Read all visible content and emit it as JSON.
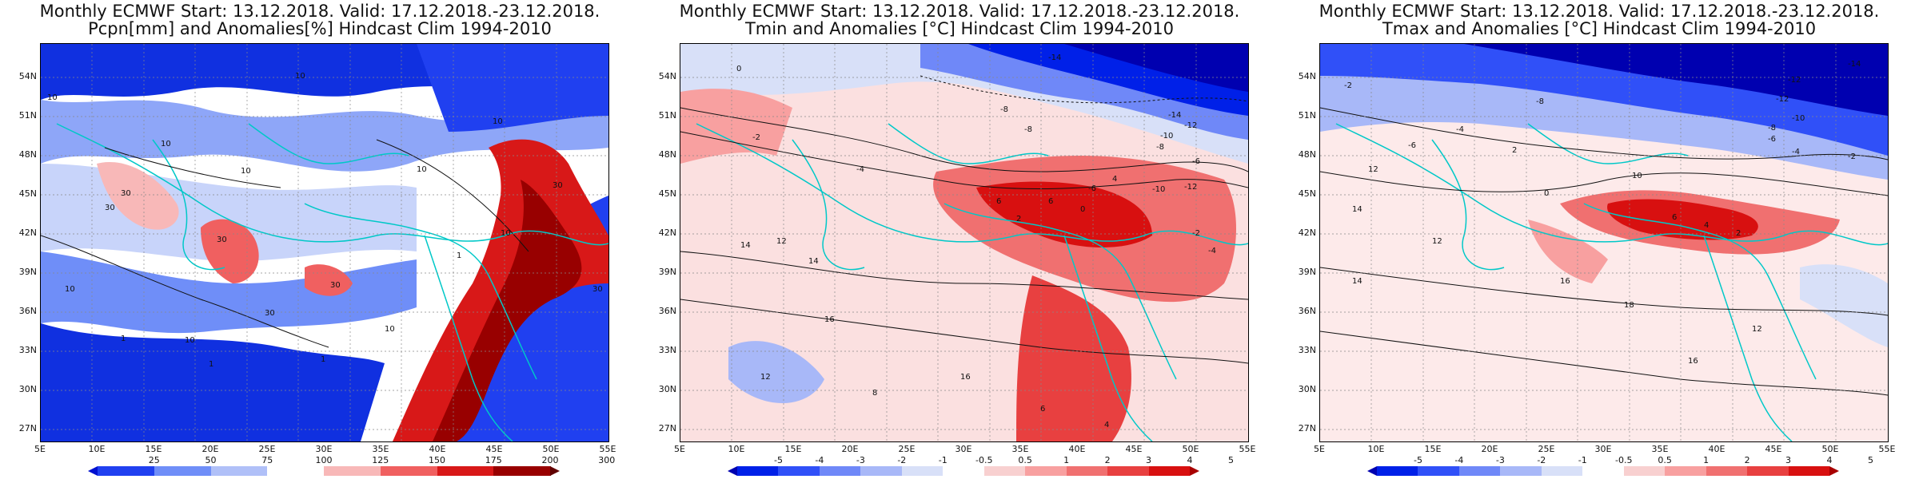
{
  "panels": [
    {
      "title_line1": "Monthly ECMWF Start: 13.12.2018. Valid: 17.12.2018.-23.12.2018.",
      "title_line2": "Pcpn[mm] and Anomalies[%] Hindcast Clim 1994-2010",
      "scale": "precip",
      "colorbar": {
        "labels": [
          "25",
          "50",
          "75",
          "100",
          "125",
          "150",
          "175",
          "200",
          "300"
        ],
        "colors": [
          "#0010d0",
          "#2040f0",
          "#6f8ef8",
          "#b0c0f8",
          "#ffffff",
          "#f8b8b8",
          "#f06060",
          "#d81818",
          "#980000",
          "#600000"
        ]
      },
      "contour_labels": [
        "10",
        "10",
        "30",
        "10",
        "10",
        "30",
        "30",
        "30",
        "10",
        "30",
        "10",
        "10",
        "1",
        "10",
        "1",
        "1",
        "30",
        "1",
        "10",
        "30",
        "10"
      ]
    },
    {
      "title_line1": "Monthly ECMWF Start: 13.12.2018. Valid: 17.12.2018.-23.12.2018.",
      "title_line2": "Tmin and Anomalies [°C] Hindcast Clim 1994-2010",
      "scale": "temp",
      "colorbar": {
        "labels": [
          "-5",
          "-4",
          "-3",
          "-2",
          "-1",
          "-0.5",
          "0.5",
          "1",
          "2",
          "3",
          "4",
          "5"
        ],
        "colors": [
          "#0000b0",
          "#0020e8",
          "#3050f8",
          "#6f88f8",
          "#a8b8f8",
          "#d8e0f8",
          "#ffffff",
          "#f8d0d0",
          "#f8a0a0",
          "#f07070",
          "#e84040",
          "#d81010",
          "#a80000"
        ]
      },
      "contour_labels": [
        "-14",
        "-8",
        "-8",
        "-14",
        "-12",
        "-10",
        "-8",
        "-6",
        "0",
        "-2",
        "-4",
        "4",
        "6",
        "0",
        "2",
        "-6",
        "-10",
        "-12",
        "-2",
        "-4",
        "6",
        "12",
        "14",
        "14",
        "16",
        "16",
        "12",
        "8",
        "6",
        "4"
      ]
    },
    {
      "title_line1": "Monthly ECMWF Start: 13.12.2018. Valid: 17.12.2018.-23.12.2018.",
      "title_line2": "Tmax and Anomalies [°C] Hindcast Clim 1994-2010",
      "scale": "temp",
      "colorbar": {
        "labels": [
          "-5",
          "-4",
          "-3",
          "-2",
          "-1",
          "-0.5",
          "0.5",
          "1",
          "2",
          "3",
          "4",
          "5"
        ],
        "colors": [
          "#0000b0",
          "#0020e8",
          "#3050f8",
          "#6f88f8",
          "#a8b8f8",
          "#d8e0f8",
          "#ffffff",
          "#f8d0d0",
          "#f8a0a0",
          "#f07070",
          "#e84040",
          "#d81010",
          "#a80000"
        ]
      },
      "contour_labels": [
        "-14",
        "-12",
        "-12",
        "-10",
        "-8",
        "-6",
        "-4",
        "-2",
        "-2",
        "-4",
        "-6",
        "-8",
        "2",
        "0",
        "12",
        "10",
        "6",
        "4",
        "2",
        "14",
        "12",
        "16",
        "18",
        "14",
        "16",
        "12"
      ]
    }
  ],
  "lat_labels": [
    "54N",
    "51N",
    "48N",
    "45N",
    "42N",
    "39N",
    "36N",
    "33N",
    "30N",
    "27N"
  ],
  "lon_labels": [
    "5E",
    "10E",
    "15E",
    "20E",
    "25E",
    "30E",
    "35E",
    "40E",
    "45E",
    "50E",
    "55E"
  ],
  "colors": {
    "coastline": "#00c8c8",
    "contour": "#111111",
    "grid": "#888888"
  }
}
